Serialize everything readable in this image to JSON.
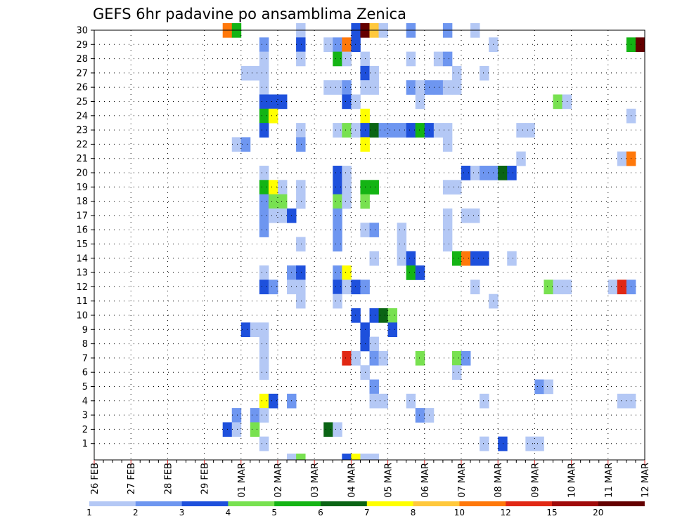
{
  "chart_data": {
    "type": "heatmap",
    "title": "GEFS 6hr padavine po ansamblima Zenica",
    "x_ticks": [
      "26 FEB",
      "27 FEB",
      "28 FEB",
      "29 FEB",
      "01 MAR",
      "02 MAR",
      "03 MAR",
      "04 MAR",
      "05 MAR",
      "06 MAR",
      "07 MAR",
      "08 MAR",
      "09 MAR",
      "10 MAR",
      "11 MAR",
      "12 MAR"
    ],
    "y_ticks": [
      "1",
      "2",
      "3",
      "4",
      "5",
      "6",
      "7",
      "8",
      "9",
      "10",
      "11",
      "12",
      "13",
      "14",
      "15",
      "16",
      "17",
      "18",
      "19",
      "20",
      "21",
      "22",
      "23",
      "24",
      "25",
      "26",
      "27",
      "28",
      "29",
      "30"
    ],
    "x_range_steps": 60,
    "grid": true,
    "legend": {
      "labels": [
        "1",
        "2",
        "3",
        "4",
        "5",
        "6",
        "7",
        "8",
        "10",
        "12",
        "15",
        "20"
      ],
      "colors": [
        "#b4c8f5",
        "#6e96f0",
        "#1e50dc",
        "#78e150",
        "#14b414",
        "#0a6414",
        "#ffff00",
        "#ffc83c",
        "#ff780a",
        "#e12814",
        "#a00a0a",
        "#640000"
      ]
    },
    "colors": [
      "#b4c8f5",
      "#6e96f0",
      "#1e50dc",
      "#78e150",
      "#14b414",
      "#0a6414",
      "#ffff00",
      "#ffc83c",
      "#ff780a",
      "#e12814",
      "#a00a0a",
      "#640000"
    ],
    "cells_note": "each cell: [ensemble member, 6-hour step index from 26 FEB 00Z, color class index]",
    "cells": [
      [
        30,
        14,
        8
      ],
      [
        30,
        15,
        4
      ],
      [
        30,
        22,
        0
      ],
      [
        30,
        28,
        2
      ],
      [
        30,
        29,
        11
      ],
      [
        30,
        30,
        7
      ],
      [
        30,
        31,
        0
      ],
      [
        30,
        34,
        1
      ],
      [
        30,
        38,
        1
      ],
      [
        30,
        41,
        0
      ],
      [
        29,
        18,
        1
      ],
      [
        29,
        22,
        2
      ],
      [
        29,
        25,
        0
      ],
      [
        29,
        26,
        1
      ],
      [
        29,
        27,
        8
      ],
      [
        29,
        28,
        2
      ],
      [
        29,
        43,
        0
      ],
      [
        29,
        58,
        4
      ],
      [
        29,
        59,
        11
      ],
      [
        28,
        18,
        0
      ],
      [
        28,
        22,
        0
      ],
      [
        28,
        26,
        4
      ],
      [
        28,
        27,
        0
      ],
      [
        28,
        29,
        0
      ],
      [
        28,
        34,
        0
      ],
      [
        28,
        37,
        0
      ],
      [
        28,
        38,
        1
      ],
      [
        27,
        16,
        0
      ],
      [
        27,
        17,
        0
      ],
      [
        27,
        18,
        0
      ],
      [
        27,
        29,
        2
      ],
      [
        27,
        30,
        0
      ],
      [
        27,
        39,
        0
      ],
      [
        27,
        42,
        0
      ],
      [
        26,
        18,
        0
      ],
      [
        26,
        25,
        0
      ],
      [
        26,
        26,
        0
      ],
      [
        26,
        27,
        1
      ],
      [
        26,
        29,
        0
      ],
      [
        26,
        30,
        0
      ],
      [
        26,
        34,
        1
      ],
      [
        26,
        35,
        0
      ],
      [
        26,
        36,
        1
      ],
      [
        26,
        37,
        1
      ],
      [
        26,
        38,
        0
      ],
      [
        26,
        39,
        0
      ],
      [
        25,
        18,
        2
      ],
      [
        25,
        19,
        2
      ],
      [
        25,
        20,
        2
      ],
      [
        25,
        27,
        2
      ],
      [
        25,
        28,
        0
      ],
      [
        25,
        35,
        0
      ],
      [
        25,
        50,
        3
      ],
      [
        25,
        51,
        0
      ],
      [
        24,
        18,
        4
      ],
      [
        24,
        19,
        6
      ],
      [
        24,
        29,
        6
      ],
      [
        24,
        58,
        0
      ],
      [
        23,
        18,
        2
      ],
      [
        23,
        22,
        0
      ],
      [
        23,
        26,
        0
      ],
      [
        23,
        27,
        3
      ],
      [
        23,
        28,
        0
      ],
      [
        23,
        29,
        2
      ],
      [
        23,
        30,
        5
      ],
      [
        23,
        31,
        1
      ],
      [
        23,
        32,
        1
      ],
      [
        23,
        33,
        1
      ],
      [
        23,
        34,
        2
      ],
      [
        23,
        35,
        4
      ],
      [
        23,
        36,
        2
      ],
      [
        23,
        37,
        0
      ],
      [
        23,
        38,
        0
      ],
      [
        23,
        46,
        0
      ],
      [
        23,
        47,
        0
      ],
      [
        22,
        15,
        0
      ],
      [
        22,
        16,
        1
      ],
      [
        22,
        22,
        1
      ],
      [
        22,
        29,
        6
      ],
      [
        22,
        38,
        0
      ],
      [
        21,
        46,
        0
      ],
      [
        21,
        57,
        0
      ],
      [
        21,
        58,
        8
      ],
      [
        20,
        18,
        0
      ],
      [
        20,
        26,
        2
      ],
      [
        20,
        27,
        0
      ],
      [
        20,
        40,
        2
      ],
      [
        20,
        41,
        0
      ],
      [
        20,
        42,
        1
      ],
      [
        20,
        43,
        1
      ],
      [
        20,
        44,
        5
      ],
      [
        20,
        45,
        2
      ],
      [
        19,
        18,
        4
      ],
      [
        19,
        19,
        6
      ],
      [
        19,
        20,
        0
      ],
      [
        19,
        22,
        0
      ],
      [
        19,
        26,
        2
      ],
      [
        19,
        27,
        0
      ],
      [
        19,
        29,
        4
      ],
      [
        19,
        30,
        4
      ],
      [
        19,
        38,
        0
      ],
      [
        19,
        39,
        0
      ],
      [
        18,
        18,
        1
      ],
      [
        18,
        19,
        3
      ],
      [
        18,
        20,
        3
      ],
      [
        18,
        22,
        0
      ],
      [
        18,
        26,
        3
      ],
      [
        18,
        27,
        0
      ],
      [
        18,
        29,
        3
      ],
      [
        17,
        18,
        1
      ],
      [
        17,
        19,
        0
      ],
      [
        17,
        20,
        0
      ],
      [
        17,
        21,
        2
      ],
      [
        17,
        26,
        1
      ],
      [
        17,
        38,
        0
      ],
      [
        17,
        40,
        0
      ],
      [
        17,
        41,
        0
      ],
      [
        16,
        18,
        1
      ],
      [
        16,
        26,
        1
      ],
      [
        16,
        29,
        0
      ],
      [
        16,
        30,
        1
      ],
      [
        16,
        33,
        0
      ],
      [
        16,
        38,
        0
      ],
      [
        15,
        22,
        0
      ],
      [
        15,
        26,
        1
      ],
      [
        15,
        33,
        0
      ],
      [
        15,
        38,
        0
      ],
      [
        14,
        30,
        0
      ],
      [
        14,
        33,
        0
      ],
      [
        14,
        34,
        2
      ],
      [
        14,
        39,
        4
      ],
      [
        14,
        40,
        8
      ],
      [
        14,
        41,
        2
      ],
      [
        14,
        42,
        2
      ],
      [
        14,
        45,
        0
      ],
      [
        13,
        18,
        0
      ],
      [
        13,
        21,
        1
      ],
      [
        13,
        22,
        2
      ],
      [
        13,
        26,
        1
      ],
      [
        13,
        27,
        6
      ],
      [
        13,
        34,
        4
      ],
      [
        13,
        35,
        2
      ],
      [
        12,
        18,
        2
      ],
      [
        12,
        19,
        1
      ],
      [
        12,
        21,
        0
      ],
      [
        12,
        22,
        0
      ],
      [
        12,
        26,
        2
      ],
      [
        12,
        27,
        0
      ],
      [
        12,
        28,
        2
      ],
      [
        12,
        29,
        1
      ],
      [
        12,
        41,
        0
      ],
      [
        12,
        49,
        3
      ],
      [
        12,
        50,
        0
      ],
      [
        12,
        51,
        0
      ],
      [
        12,
        56,
        0
      ],
      [
        12,
        57,
        9
      ],
      [
        12,
        58,
        1
      ],
      [
        11,
        22,
        0
      ],
      [
        11,
        26,
        0
      ],
      [
        11,
        43,
        0
      ],
      [
        10,
        28,
        2
      ],
      [
        10,
        30,
        2
      ],
      [
        10,
        31,
        5
      ],
      [
        10,
        32,
        3
      ],
      [
        9,
        16,
        2
      ],
      [
        9,
        17,
        0
      ],
      [
        9,
        18,
        0
      ],
      [
        9,
        29,
        2
      ],
      [
        9,
        32,
        2
      ],
      [
        8,
        18,
        0
      ],
      [
        8,
        29,
        2
      ],
      [
        8,
        30,
        0
      ],
      [
        7,
        18,
        0
      ],
      [
        7,
        27,
        9
      ],
      [
        7,
        28,
        0
      ],
      [
        7,
        30,
        1
      ],
      [
        7,
        31,
        0
      ],
      [
        7,
        35,
        3
      ],
      [
        7,
        39,
        3
      ],
      [
        7,
        40,
        1
      ],
      [
        6,
        18,
        0
      ],
      [
        6,
        29,
        0
      ],
      [
        6,
        39,
        0
      ],
      [
        5,
        30,
        1
      ],
      [
        5,
        48,
        1
      ],
      [
        5,
        49,
        0
      ],
      [
        4,
        18,
        6
      ],
      [
        4,
        19,
        2
      ],
      [
        4,
        21,
        1
      ],
      [
        4,
        30,
        0
      ],
      [
        4,
        31,
        0
      ],
      [
        4,
        34,
        0
      ],
      [
        4,
        42,
        0
      ],
      [
        4,
        57,
        0
      ],
      [
        4,
        58,
        0
      ],
      [
        3,
        15,
        1
      ],
      [
        3,
        17,
        1
      ],
      [
        3,
        18,
        0
      ],
      [
        3,
        35,
        1
      ],
      [
        3,
        36,
        0
      ],
      [
        2,
        14,
        2
      ],
      [
        2,
        15,
        0
      ],
      [
        2,
        17,
        3
      ],
      [
        2,
        25,
        5
      ],
      [
        2,
        26,
        0
      ],
      [
        1,
        18,
        0
      ],
      [
        1,
        42,
        0
      ],
      [
        1,
        44,
        2
      ],
      [
        1,
        47,
        0
      ],
      [
        1,
        48,
        0
      ],
      [
        0,
        21,
        0
      ],
      [
        0,
        22,
        3
      ],
      [
        0,
        27,
        2
      ],
      [
        0,
        28,
        6
      ],
      [
        0,
        29,
        0
      ],
      [
        0,
        30,
        0
      ]
    ]
  }
}
